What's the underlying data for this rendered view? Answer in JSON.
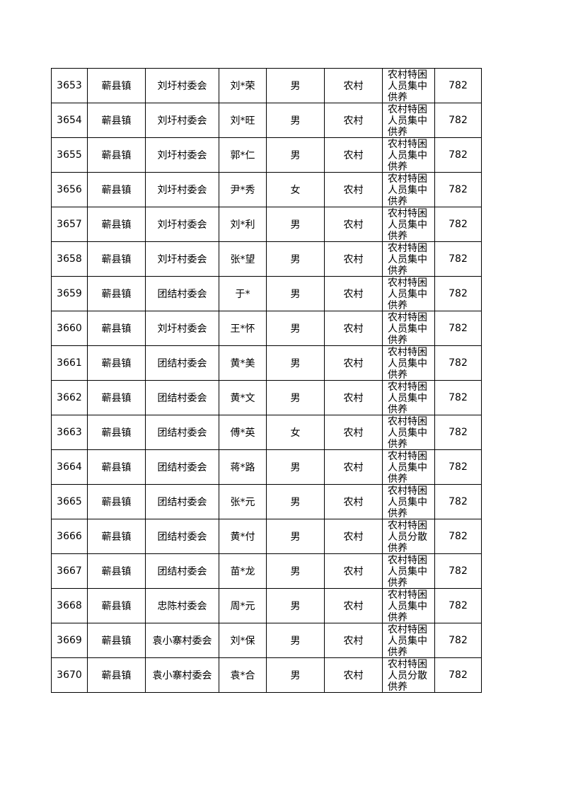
{
  "table": {
    "rows": [
      [
        "3653",
        "蕲县镇",
        "刘圩村委会",
        "刘*荣",
        "男",
        "农村",
        "农村特困人员集中供养",
        "782"
      ],
      [
        "3654",
        "蕲县镇",
        "刘圩村委会",
        "刘*旺",
        "男",
        "农村",
        "农村特困人员集中供养",
        "782"
      ],
      [
        "3655",
        "蕲县镇",
        "刘圩村委会",
        "郭*仁",
        "男",
        "农村",
        "农村特困人员集中供养",
        "782"
      ],
      [
        "3656",
        "蕲县镇",
        "刘圩村委会",
        "尹*秀",
        "女",
        "农村",
        "农村特困人员集中供养",
        "782"
      ],
      [
        "3657",
        "蕲县镇",
        "刘圩村委会",
        "刘*利",
        "男",
        "农村",
        "农村特困人员集中供养",
        "782"
      ],
      [
        "3658",
        "蕲县镇",
        "刘圩村委会",
        "张*望",
        "男",
        "农村",
        "农村特困人员集中供养",
        "782"
      ],
      [
        "3659",
        "蕲县镇",
        "团结村委会",
        "于*",
        "男",
        "农村",
        "农村特困人员集中供养",
        "782"
      ],
      [
        "3660",
        "蕲县镇",
        "刘圩村委会",
        "王*怀",
        "男",
        "农村",
        "农村特困人员集中供养",
        "782"
      ],
      [
        "3661",
        "蕲县镇",
        "团结村委会",
        "黄*美",
        "男",
        "农村",
        "农村特困人员集中供养",
        "782"
      ],
      [
        "3662",
        "蕲县镇",
        "团结村委会",
        "黄*文",
        "男",
        "农村",
        "农村特困人员集中供养",
        "782"
      ],
      [
        "3663",
        "蕲县镇",
        "团结村委会",
        "傅*英",
        "女",
        "农村",
        "农村特困人员集中供养",
        "782"
      ],
      [
        "3664",
        "蕲县镇",
        "团结村委会",
        "蒋*路",
        "男",
        "农村",
        "农村特困人员集中供养",
        "782"
      ],
      [
        "3665",
        "蕲县镇",
        "团结村委会",
        "张*元",
        "男",
        "农村",
        "农村特困人员集中供养",
        "782"
      ],
      [
        "3666",
        "蕲县镇",
        "团结村委会",
        "黄*付",
        "男",
        "农村",
        "农村特困人员分散供养",
        "782"
      ],
      [
        "3667",
        "蕲县镇",
        "团结村委会",
        "苗*龙",
        "男",
        "农村",
        "农村特困人员集中供养",
        "782"
      ],
      [
        "3668",
        "蕲县镇",
        "忠陈村委会",
        "周*元",
        "男",
        "农村",
        "农村特困人员集中供养",
        "782"
      ],
      [
        "3669",
        "蕲县镇",
        "袁小寨村委会",
        "刘*保",
        "男",
        "农村",
        "农村特困人员集中供养",
        "782"
      ],
      [
        "3670",
        "蕲县镇",
        "袁小寨村委会",
        "袁*合",
        "男",
        "农村",
        "农村特困人员分散供养",
        "782"
      ]
    ]
  }
}
